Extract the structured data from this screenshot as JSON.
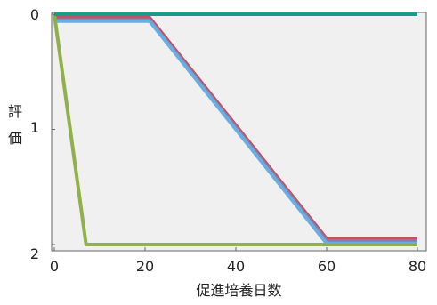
{
  "chart_data": {
    "type": "line",
    "title": "",
    "xlabel": "促進培養日数",
    "ylabel": "評価",
    "xlim": [
      0,
      80
    ],
    "ylim": [
      0,
      2
    ],
    "y_inverted": true,
    "x_ticks": [
      "0",
      "20",
      "40",
      "60",
      "80"
    ],
    "x_tick_values": [
      0,
      20,
      40,
      60,
      80
    ],
    "y_ticks": [
      "0",
      "1",
      "2"
    ],
    "y_tick_values": [
      0,
      1,
      2
    ],
    "grid": false,
    "plot_background": "#f0f0f0",
    "series": [
      {
        "color": "#c8505e",
        "x": [
          0,
          21,
          60,
          80
        ],
        "y": [
          0.03,
          0.03,
          1.95,
          1.95
        ]
      },
      {
        "color": "#7f7fb8",
        "x": [
          0,
          21,
          60,
          80
        ],
        "y": [
          0.05,
          0.05,
          1.97,
          1.97
        ]
      },
      {
        "color": "#6aaee0",
        "x": [
          0,
          21,
          60,
          80
        ],
        "y": [
          0.06,
          0.06,
          1.99,
          1.99
        ]
      },
      {
        "color": "#8fb04a",
        "x": [
          0,
          7,
          80
        ],
        "y": [
          0.0,
          2.0,
          2.0
        ]
      },
      {
        "color": "#1a9a8a",
        "x": [
          0,
          80
        ],
        "y": [
          0.0,
          0.0
        ]
      }
    ]
  }
}
